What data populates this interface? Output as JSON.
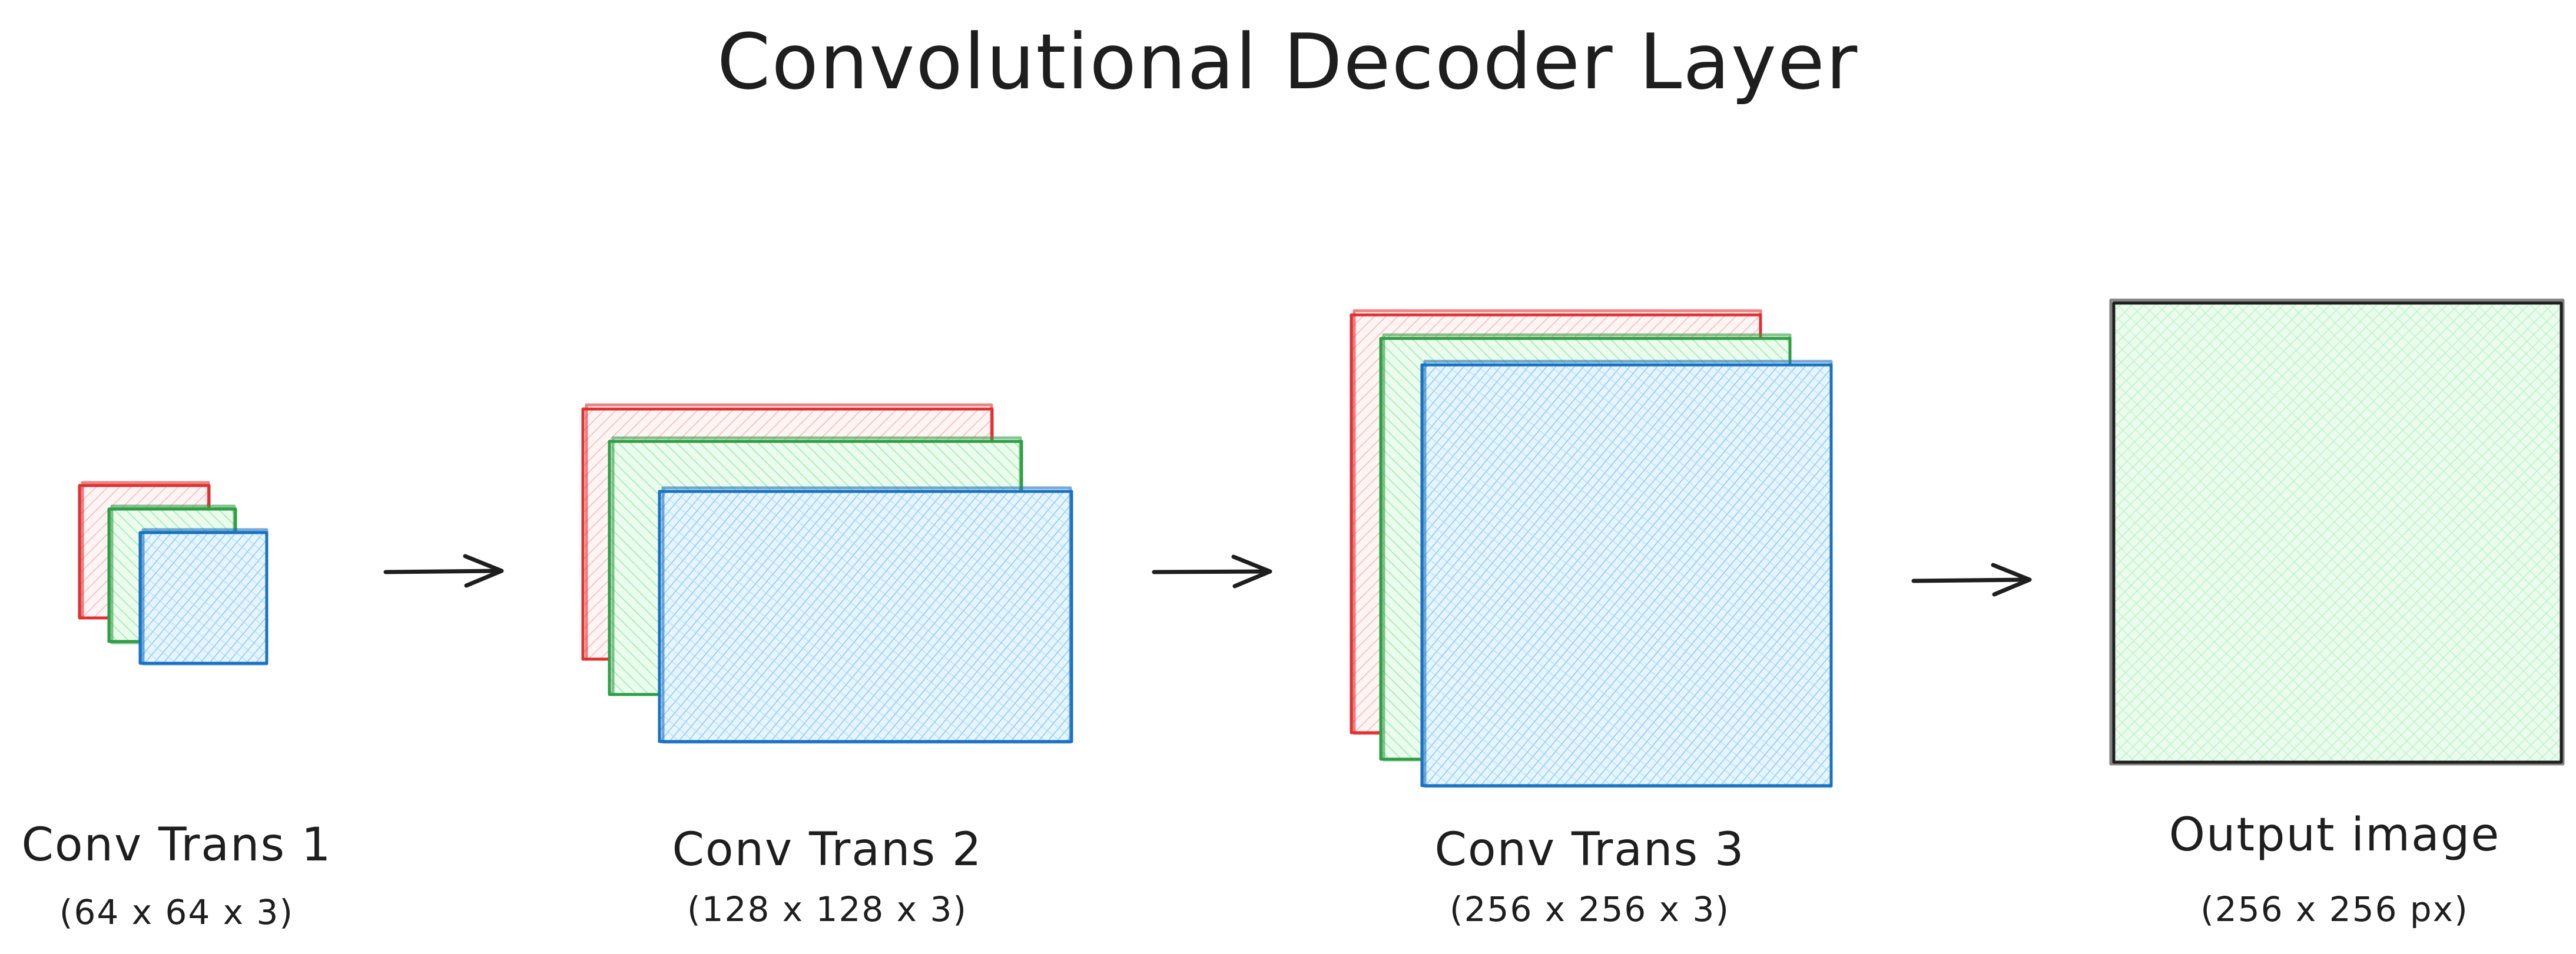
{
  "title": "Convolutional Decoder Layer",
  "colors": {
    "red": "#e03131",
    "green": "#2f9e44",
    "blue": "#1971c2",
    "red_fill": "#ffc9c9",
    "green_fill": "#b2f2bb",
    "blue_fill": "#a5d8ff",
    "output_border": "#1e1e1e",
    "ink": "#1e1e1e"
  },
  "stages": [
    {
      "label": "Conv Trans 1",
      "dims": "(64 x 64 x 3)"
    },
    {
      "label": "Conv Trans 2",
      "dims": "(128 x 128 x 3)"
    },
    {
      "label": "Conv Trans 3",
      "dims": "(256 x 256 x 3)"
    },
    {
      "label": "Output image",
      "dims": "(256 x 256 px)"
    }
  ]
}
